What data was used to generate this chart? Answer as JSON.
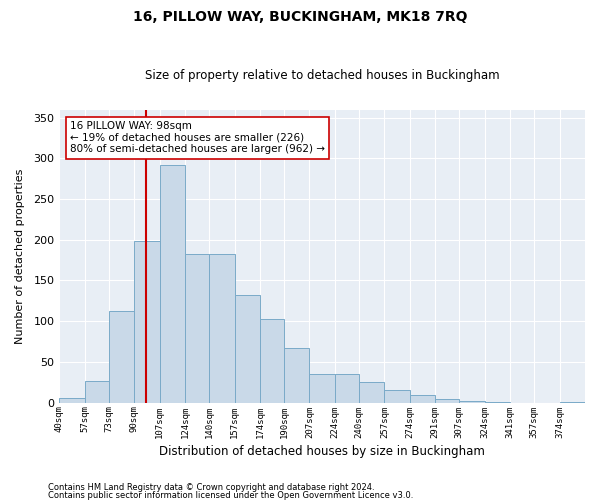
{
  "title": "16, PILLOW WAY, BUCKINGHAM, MK18 7RQ",
  "subtitle": "Size of property relative to detached houses in Buckingham",
  "xlabel": "Distribution of detached houses by size in Buckingham",
  "ylabel": "Number of detached properties",
  "footnote1": "Contains HM Land Registry data © Crown copyright and database right 2024.",
  "footnote2": "Contains public sector information licensed under the Open Government Licence v3.0.",
  "annotation_line1": "16 PILLOW WAY: 98sqm",
  "annotation_line2": "← 19% of detached houses are smaller (226)",
  "annotation_line3": "80% of semi-detached houses are larger (962) →",
  "bar_color": "#c9d9e8",
  "bar_edge_color": "#7aaac8",
  "vline_color": "#cc0000",
  "vline_x": 98,
  "background_color": "#e8eef5",
  "categories": [
    "40sqm",
    "57sqm",
    "73sqm",
    "90sqm",
    "107sqm",
    "124sqm",
    "140sqm",
    "157sqm",
    "174sqm",
    "190sqm",
    "207sqm",
    "224sqm",
    "240sqm",
    "257sqm",
    "274sqm",
    "291sqm",
    "307sqm",
    "324sqm",
    "341sqm",
    "357sqm",
    "374sqm"
  ],
  "bin_edges": [
    40,
    57,
    73,
    90,
    107,
    124,
    140,
    157,
    174,
    190,
    207,
    224,
    240,
    257,
    274,
    291,
    307,
    324,
    341,
    357,
    374,
    391
  ],
  "values": [
    5,
    27,
    112,
    198,
    292,
    182,
    182,
    132,
    103,
    67,
    35,
    35,
    25,
    16,
    9,
    4,
    2,
    1,
    0,
    0,
    1
  ],
  "ylim": [
    0,
    360
  ],
  "yticks": [
    0,
    50,
    100,
    150,
    200,
    250,
    300,
    350
  ]
}
